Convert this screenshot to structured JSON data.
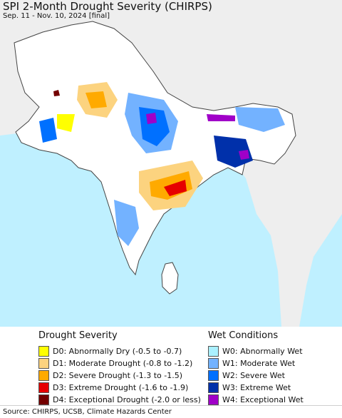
{
  "header": {
    "title": "SPI 2-Month Drought Severity (CHIRPS)",
    "subtitle": "Sep. 11 - Nov. 10, 2024 [final]"
  },
  "map": {
    "ocean_color": "#bff0ff",
    "land_color": "#ffffff",
    "neighbor_land_color": "#eeeeee",
    "border_color": "#444444"
  },
  "legend": {
    "drought": {
      "title": "Drought Severity",
      "items": [
        {
          "label": "D0: Abnormally Dry (-0.5 to -0.7)",
          "color": "#ffff00"
        },
        {
          "label": "D1: Moderate Drought (-0.8 to -1.2)",
          "color": "#fcd37f"
        },
        {
          "label": "D2: Severe Drought (-1.3 to -1.5)",
          "color": "#ffaa00"
        },
        {
          "label": "D3: Extreme Drought (-1.6 to -1.9)",
          "color": "#e60000"
        },
        {
          "label": "D4: Exceptional Drought (-2.0 or less)",
          "color": "#730000"
        }
      ]
    },
    "wet": {
      "title": "Wet Conditions",
      "items": [
        {
          "label": "W0: Abnormally Wet",
          "color": "#aaf0ff"
        },
        {
          "label": "W1: Moderate Wet",
          "color": "#73b2ff"
        },
        {
          "label": "W2: Severe Wet",
          "color": "#0070ff"
        },
        {
          "label": "W3: Extreme Wet",
          "color": "#0030aa"
        },
        {
          "label": "W4: Exceptional Wet",
          "color": "#a000c8"
        }
      ]
    }
  },
  "footer": {
    "source": "Source: CHIRPS, UCSB, Climate Hazards Center"
  }
}
